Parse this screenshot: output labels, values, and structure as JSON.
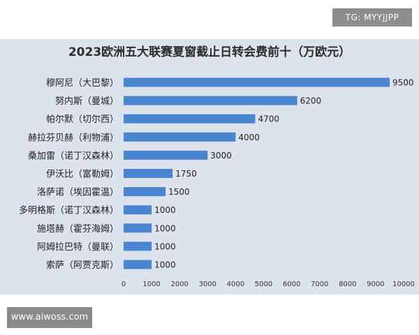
{
  "watermarks": {
    "top_right": "TG: MYYJJPP",
    "bottom_left": "www.aiwoss.com"
  },
  "chart_data": {
    "type": "bar",
    "orientation": "horizontal",
    "title": "2023欧洲五大联赛夏窗截止日转会费前十（万欧元）",
    "xlabel": "",
    "ylabel": "",
    "categories": [
      "穆阿尼（大巴黎）",
      "努内斯（曼城）",
      "帕尔默（切尔西）",
      "赫拉芬贝赫（利物浦）",
      "桑加雷（诺丁汉森林）",
      "伊沃比（富勒姆）",
      "洛萨诺（埃因霍温）",
      "多明格斯（诺丁汉森林）",
      "施塔赫（霍芬海姆）",
      "阿姆拉巴特（曼联）",
      "索萨（阿贾克斯）"
    ],
    "values": [
      9500,
      6200,
      4700,
      4000,
      3000,
      1750,
      1500,
      1000,
      1000,
      1000,
      1000
    ],
    "value_labels": [
      "9500",
      "6200",
      "4700",
      "4000",
      "3000",
      "1750",
      "1500",
      "1000",
      "1000",
      "1000",
      "1000"
    ],
    "xlim": [
      0,
      10000
    ],
    "x_ticks": [
      "0",
      "1000",
      "2000",
      "3000",
      "4000",
      "5000",
      "6000",
      "7000",
      "8000",
      "9000",
      "10000"
    ],
    "grid": false,
    "legend": "none",
    "bar_color": "#4a86cf",
    "panel_color": "#dde3ec"
  }
}
